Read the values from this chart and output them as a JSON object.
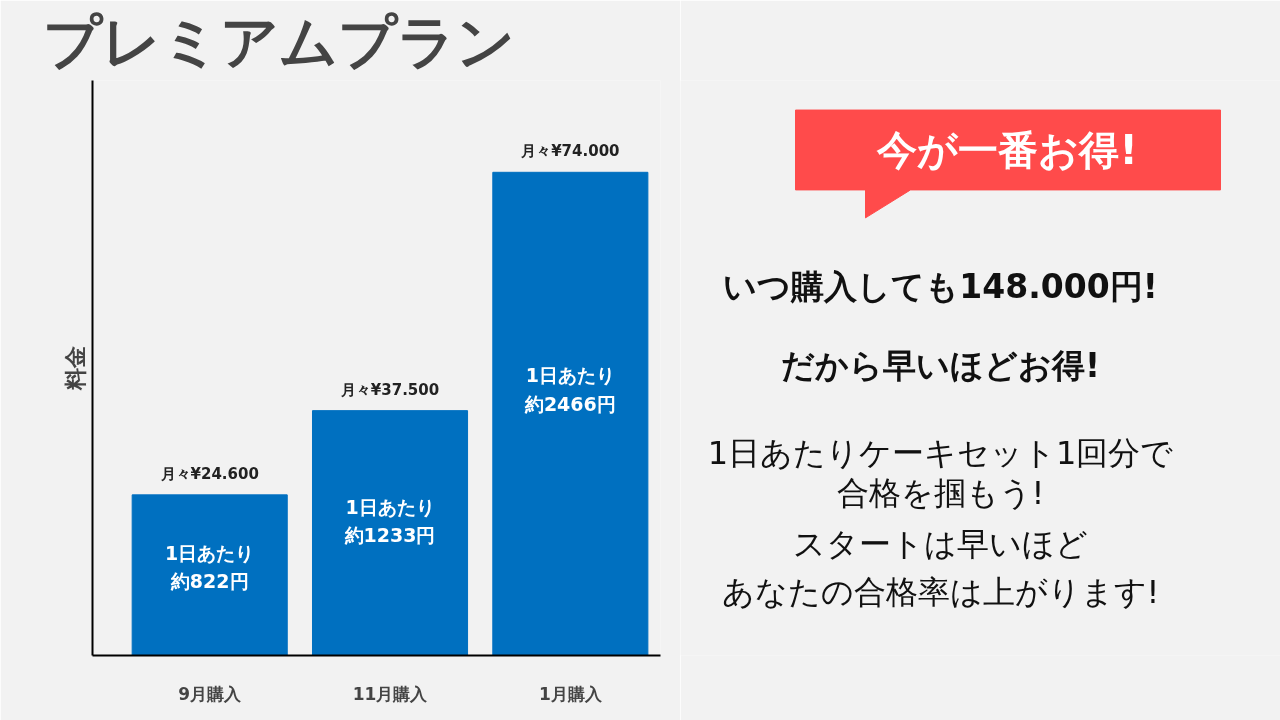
{
  "chart_data": {
    "type": "bar",
    "title": "プレミアムプラン",
    "ylabel": "料金",
    "categories": [
      "9月購入",
      "11月購入",
      "1月購入"
    ],
    "values": [
      24600,
      37500,
      74000
    ],
    "color": "#0070c0",
    "value_labels": [
      "月々¥24.600",
      "月々¥37.500",
      "月々¥74.000"
    ],
    "annotations": [
      "今が一番お得!",
      "いつ購入しても148.000円!",
      "だから早いほどお得!",
      "1日あたりケーキセット1回分で",
      "合格を掴もう!",
      "スタートは早いほど",
      "あなたの合格率は上がります!",
      "1日あたり約822円",
      "1日あたり約1233円",
      "1日あたり約2466円"
    ],
    "grid": false
  }
}
